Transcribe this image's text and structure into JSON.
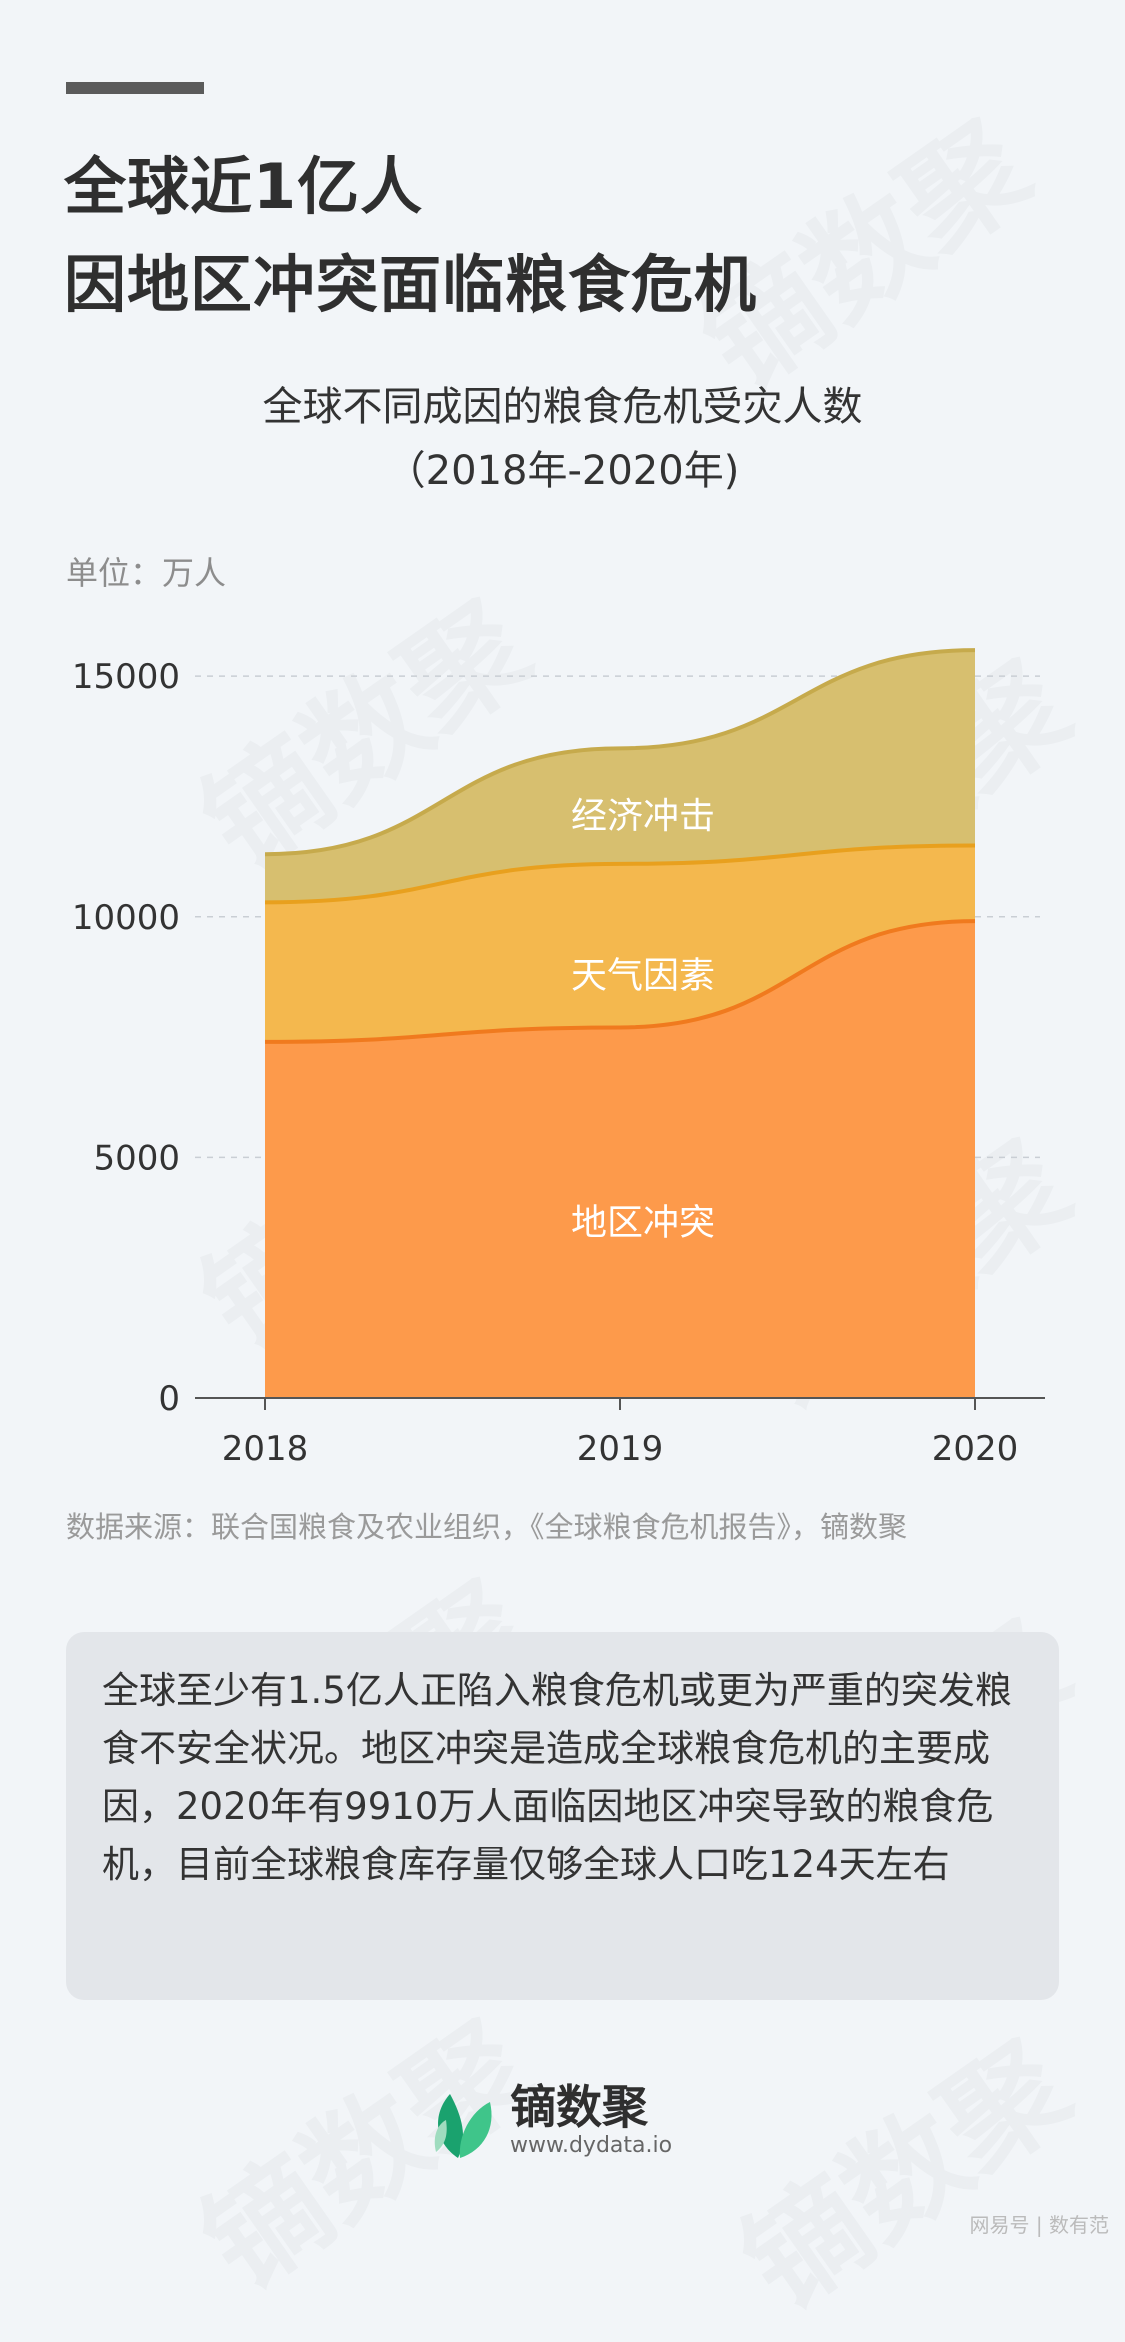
{
  "title_line1": "全球近1亿人",
  "title_line2": "因地区冲突面临粮食危机",
  "chart_title_line1": "全球不同成因的粮食危机受灾人数",
  "chart_title_line2": "（2018年-2020年)",
  "unit": "单位：万人",
  "source": "数据来源：联合国粮食及农业组织，《全球粮食危机报告》，镝数聚",
  "note": "全球至少有1.5亿人正陷入粮食危机或更为严重的突发粮食不安全状况。地区冲突是造成全球粮食危机的主要成因，2020年有9910万人面临因地区冲突导致的粮食危机，目前全球粮食库存量仅够全球人口吃124天左右",
  "logo": {
    "name": "镝数聚",
    "url": "www.dydata.io"
  },
  "footer_mark": "网易号 | 数有范",
  "watermark": "镝数聚",
  "colors": {
    "conflict": "#fd9a4b",
    "weather": "#f4b84e",
    "economic": "#d7bf6f"
  },
  "chart_data": {
    "type": "area",
    "stacked": true,
    "x": [
      "2018",
      "2019",
      "2020"
    ],
    "series": [
      {
        "name": "地区冲突",
        "values": [
          7400,
          7700,
          9910
        ]
      },
      {
        "name": "天气因素",
        "values": [
          2900,
          3400,
          1570
        ]
      },
      {
        "name": "经济冲击",
        "values": [
          1000,
          2400,
          4060
        ]
      }
    ],
    "ylim": [
      0,
      16000
    ],
    "yticks": [
      0,
      5000,
      10000,
      15000
    ],
    "grid": true
  }
}
